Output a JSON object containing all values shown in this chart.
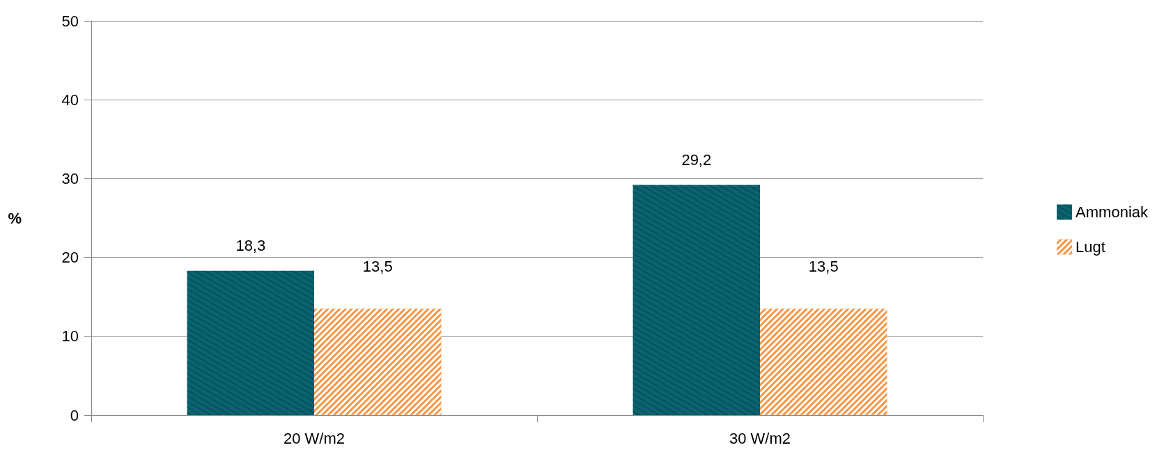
{
  "chart_data": {
    "type": "bar",
    "ylabel": "%",
    "categories": [
      "20 W/m2",
      "30 W/m2"
    ],
    "series": [
      {
        "name": "Ammoniak",
        "color": "#0a6470",
        "values": [
          18.3,
          29.2
        ],
        "value_labels": [
          "18,3",
          "29,2"
        ]
      },
      {
        "name": "Lugt",
        "color": "#f79646",
        "values": [
          13.5,
          13.5
        ],
        "value_labels": [
          "13,5",
          "13,5"
        ]
      }
    ],
    "ylim": [
      0,
      50
    ],
    "yticks": [
      0,
      10,
      20,
      30,
      40,
      50
    ],
    "grid": "y",
    "legend": "right"
  }
}
